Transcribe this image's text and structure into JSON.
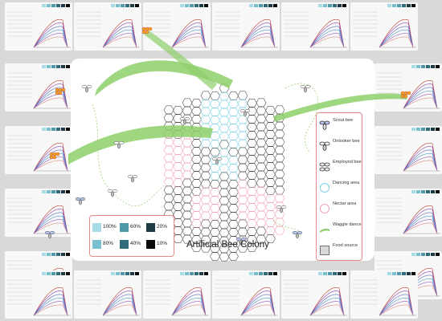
{
  "title": "Artificial Bee Colony",
  "legend": {
    "items": [
      {
        "label": "Scout bee",
        "icon": "scout-bee-icon"
      },
      {
        "label": "Onlooker bee",
        "icon": "onlooker-bee-icon"
      },
      {
        "label": "Employed bee",
        "icon": "employed-bee-icon"
      },
      {
        "label": "Dancing area",
        "icon": "dancing-area-icon"
      },
      {
        "label": "Nectar area",
        "icon": "nectar-area-icon"
      },
      {
        "label": "Waggle dance",
        "icon": "waggle-dance-icon"
      },
      {
        "label": "Food source",
        "icon": "food-source-icon"
      }
    ]
  },
  "shading_legend": {
    "items": [
      {
        "label": "100%",
        "color": "#a8dde8"
      },
      {
        "label": "60%",
        "color": "#4e9aa8"
      },
      {
        "label": "20%",
        "color": "#1c3b44"
      },
      {
        "label": "80%",
        "color": "#79c0cf"
      },
      {
        "label": "40%",
        "color": "#2f6b78"
      },
      {
        "label": "10%",
        "color": "#0a0a0a"
      }
    ]
  },
  "colors": {
    "background": "#d9d9d9",
    "diagram_bg": "#ffffff",
    "hex_stroke": "#555555",
    "dancing_area": "#7fd3e6",
    "nectar_area": "#f2a4b4",
    "waggle_dance": "#8ecf6a",
    "legend_border": "#e48a8a"
  }
}
